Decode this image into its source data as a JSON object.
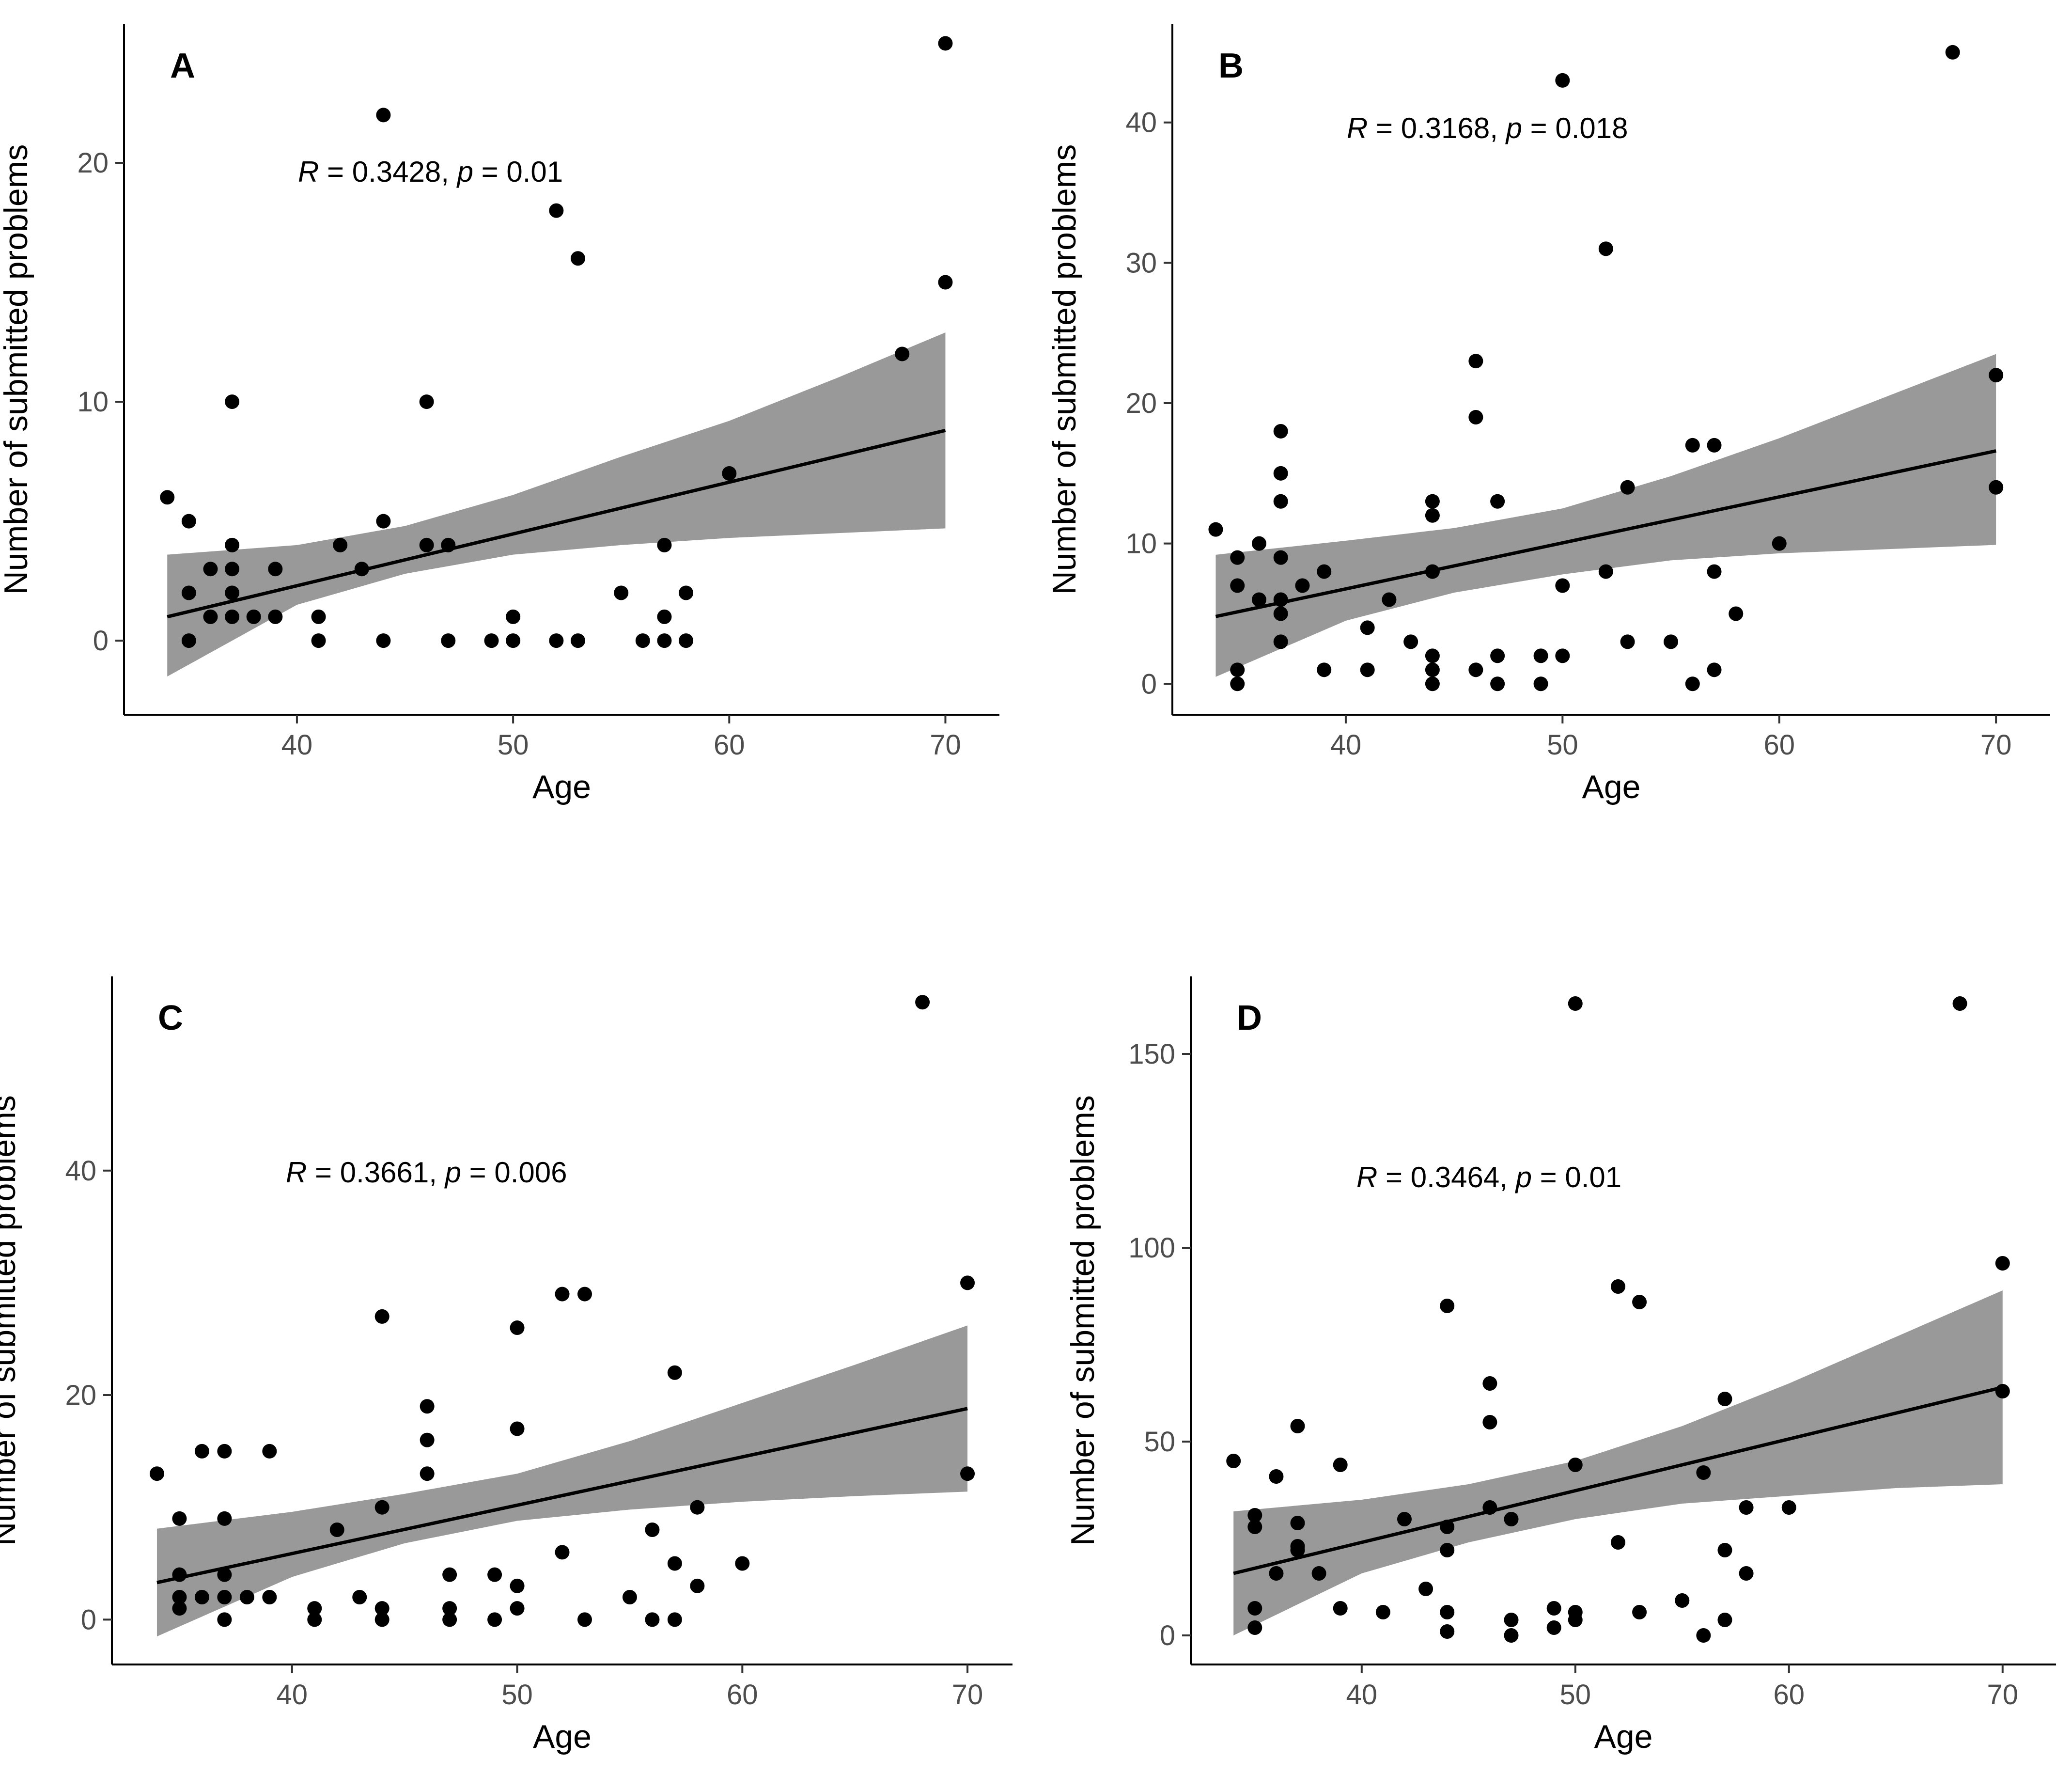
{
  "chart_data": [
    {
      "type": "scatter",
      "panel": "A",
      "xlabel": "Age",
      "ylabel": "Number of submitted problems",
      "annotation": {
        "r_label": "R",
        "r_value": "0.3428",
        "p_label": "p",
        "p_value": "0.01"
      },
      "xlim": [
        32.0,
        72.5
      ],
      "ylim": [
        -3.1,
        25.8
      ],
      "xticks": [
        40,
        50,
        60,
        70
      ],
      "yticks": [
        0,
        10,
        20
      ],
      "points": [
        [
          34,
          6
        ],
        [
          35,
          5
        ],
        [
          35,
          2
        ],
        [
          35,
          0
        ],
        [
          36,
          3
        ],
        [
          36,
          1
        ],
        [
          37,
          10
        ],
        [
          37,
          4
        ],
        [
          37,
          3
        ],
        [
          37,
          2
        ],
        [
          37,
          1
        ],
        [
          38,
          1
        ],
        [
          39,
          3
        ],
        [
          39,
          1
        ],
        [
          41,
          1
        ],
        [
          41,
          0
        ],
        [
          42,
          4
        ],
        [
          43,
          3
        ],
        [
          44,
          22
        ],
        [
          44,
          5
        ],
        [
          44,
          0
        ],
        [
          46,
          10
        ],
        [
          46,
          4
        ],
        [
          47,
          4
        ],
        [
          47,
          0
        ],
        [
          49,
          0
        ],
        [
          50,
          1
        ],
        [
          50,
          0
        ],
        [
          52,
          18
        ],
        [
          52,
          0
        ],
        [
          53,
          16
        ],
        [
          53,
          0
        ],
        [
          55,
          2
        ],
        [
          56,
          0
        ],
        [
          57,
          4
        ],
        [
          57,
          1
        ],
        [
          57,
          0
        ],
        [
          58,
          2
        ],
        [
          58,
          0
        ],
        [
          60,
          7
        ],
        [
          68,
          12
        ],
        [
          70,
          25
        ],
        [
          70,
          15
        ]
      ],
      "fit": {
        "x": [
          34,
          70
        ],
        "y": [
          1.0,
          8.8
        ]
      },
      "band": {
        "x": [
          34,
          40,
          45,
          50,
          55,
          60,
          65,
          70
        ],
        "lower": [
          -1.5,
          1.5,
          2.8,
          3.6,
          4.0,
          4.3,
          4.5,
          4.7
        ],
        "upper": [
          3.6,
          4.0,
          4.8,
          6.1,
          7.7,
          9.2,
          11.0,
          12.9
        ]
      }
    },
    {
      "type": "scatter",
      "panel": "B",
      "xlabel": "Age",
      "ylabel": "Number of submitted problems",
      "annotation": {
        "r_label": "R",
        "r_value": "0.3168",
        "p_label": "p",
        "p_value": "0.018"
      },
      "xlim": [
        32.0,
        72.5
      ],
      "ylim": [
        -2.2,
        47.0
      ],
      "xticks": [
        40,
        50,
        60,
        70
      ],
      "yticks": [
        0,
        10,
        20,
        30,
        40
      ],
      "points": [
        [
          34,
          11
        ],
        [
          35,
          9
        ],
        [
          35,
          7
        ],
        [
          35,
          1
        ],
        [
          35,
          0
        ],
        [
          36,
          10
        ],
        [
          36,
          6
        ],
        [
          37,
          18
        ],
        [
          37,
          15
        ],
        [
          37,
          13
        ],
        [
          37,
          9
        ],
        [
          37,
          6
        ],
        [
          37,
          5
        ],
        [
          37,
          3
        ],
        [
          38,
          7
        ],
        [
          39,
          8
        ],
        [
          39,
          1
        ],
        [
          41,
          4
        ],
        [
          41,
          1
        ],
        [
          42,
          6
        ],
        [
          43,
          3
        ],
        [
          44,
          13
        ],
        [
          44,
          12
        ],
        [
          44,
          8
        ],
        [
          44,
          2
        ],
        [
          44,
          1
        ],
        [
          44,
          0
        ],
        [
          46,
          23
        ],
        [
          46,
          19
        ],
        [
          46,
          1
        ],
        [
          47,
          13
        ],
        [
          47,
          2
        ],
        [
          47,
          0
        ],
        [
          49,
          2
        ],
        [
          49,
          0
        ],
        [
          50,
          43
        ],
        [
          50,
          7
        ],
        [
          50,
          2
        ],
        [
          52,
          31
        ],
        [
          52,
          8
        ],
        [
          53,
          14
        ],
        [
          53,
          3
        ],
        [
          55,
          3
        ],
        [
          56,
          17
        ],
        [
          56,
          0
        ],
        [
          57,
          17
        ],
        [
          57,
          8
        ],
        [
          57,
          1
        ],
        [
          58,
          5
        ],
        [
          60,
          10
        ],
        [
          68,
          45
        ],
        [
          70,
          22
        ],
        [
          70,
          14
        ]
      ],
      "fit": {
        "x": [
          34,
          70
        ],
        "y": [
          4.8,
          16.6
        ]
      },
      "band": {
        "x": [
          34,
          40,
          45,
          50,
          55,
          60,
          65,
          70
        ],
        "lower": [
          0.5,
          4.5,
          6.5,
          7.8,
          8.8,
          9.3,
          9.6,
          9.9
        ],
        "upper": [
          9.2,
          10.2,
          11.1,
          12.5,
          14.8,
          17.5,
          20.5,
          23.5
        ]
      }
    },
    {
      "type": "scatter",
      "panel": "C",
      "xlabel": "Age",
      "ylabel": "Number of submitted problems",
      "annotation": {
        "r_label": "R",
        "r_value": "0.3661",
        "p_label": "p",
        "p_value": "0.006"
      },
      "xlim": [
        32.0,
        72.0
      ],
      "ylim": [
        -4.0,
        57.3
      ],
      "xticks": [
        40,
        50,
        60,
        70
      ],
      "yticks": [
        0,
        20,
        40
      ],
      "points": [
        [
          34,
          13
        ],
        [
          35,
          9
        ],
        [
          35,
          4
        ],
        [
          35,
          2
        ],
        [
          35,
          1
        ],
        [
          36,
          15
        ],
        [
          36,
          2
        ],
        [
          37,
          15
        ],
        [
          37,
          9
        ],
        [
          37,
          4
        ],
        [
          37,
          2
        ],
        [
          37,
          0
        ],
        [
          38,
          2
        ],
        [
          39,
          15
        ],
        [
          39,
          2
        ],
        [
          41,
          1
        ],
        [
          41,
          0
        ],
        [
          42,
          8
        ],
        [
          43,
          2
        ],
        [
          44,
          27
        ],
        [
          44,
          10
        ],
        [
          44,
          1
        ],
        [
          44,
          0
        ],
        [
          46,
          19
        ],
        [
          46,
          16
        ],
        [
          46,
          13
        ],
        [
          47,
          4
        ],
        [
          47,
          1
        ],
        [
          47,
          0
        ],
        [
          49,
          4
        ],
        [
          49,
          0
        ],
        [
          50,
          26
        ],
        [
          50,
          17
        ],
        [
          50,
          3
        ],
        [
          50,
          1
        ],
        [
          52,
          29
        ],
        [
          52,
          6
        ],
        [
          53,
          29
        ],
        [
          53,
          0
        ],
        [
          55,
          2
        ],
        [
          56,
          8
        ],
        [
          56,
          0
        ],
        [
          57,
          22
        ],
        [
          57,
          5
        ],
        [
          57,
          0
        ],
        [
          58,
          10
        ],
        [
          58,
          3
        ],
        [
          60,
          5
        ],
        [
          68,
          55
        ],
        [
          70,
          30
        ],
        [
          70,
          13
        ]
      ],
      "fit": {
        "x": [
          34,
          70
        ],
        "y": [
          3.3,
          18.8
        ]
      },
      "band": {
        "x": [
          34,
          40,
          45,
          50,
          55,
          60,
          65,
          70
        ],
        "lower": [
          -1.5,
          3.8,
          6.8,
          8.8,
          9.8,
          10.5,
          11.0,
          11.4
        ],
        "upper": [
          8.1,
          9.6,
          11.2,
          13.0,
          15.9,
          19.3,
          22.7,
          26.2
        ]
      }
    },
    {
      "type": "scatter",
      "panel": "D",
      "xlabel": "Age",
      "ylabel": "Number of submitted problems",
      "annotation": {
        "r_label": "R",
        "r_value": "0.3464",
        "p_label": "p",
        "p_value": "0.01"
      },
      "xlim": [
        32.0,
        72.5
      ],
      "ylim": [
        -7.5,
        170.0
      ],
      "xticks": [
        40,
        50,
        60,
        70
      ],
      "yticks": [
        0,
        50,
        100,
        150
      ],
      "points": [
        [
          34,
          45
        ],
        [
          35,
          31
        ],
        [
          35,
          28
        ],
        [
          35,
          7
        ],
        [
          35,
          2
        ],
        [
          36,
          41
        ],
        [
          36,
          16
        ],
        [
          37,
          54
        ],
        [
          37,
          29
        ],
        [
          37,
          23
        ],
        [
          37,
          22
        ],
        [
          38,
          16
        ],
        [
          39,
          44
        ],
        [
          39,
          7
        ],
        [
          41,
          6
        ],
        [
          42,
          30
        ],
        [
          43,
          12
        ],
        [
          44,
          85
        ],
        [
          44,
          28
        ],
        [
          44,
          22
        ],
        [
          44,
          6
        ],
        [
          44,
          1
        ],
        [
          46,
          65
        ],
        [
          46,
          55
        ],
        [
          46,
          33
        ],
        [
          47,
          30
        ],
        [
          47,
          4
        ],
        [
          47,
          0
        ],
        [
          49,
          7
        ],
        [
          49,
          2
        ],
        [
          50,
          163
        ],
        [
          50,
          44
        ],
        [
          50,
          6
        ],
        [
          50,
          4
        ],
        [
          52,
          90
        ],
        [
          52,
          24
        ],
        [
          53,
          86
        ],
        [
          53,
          6
        ],
        [
          55,
          9
        ],
        [
          56,
          42
        ],
        [
          56,
          0
        ],
        [
          57,
          61
        ],
        [
          57,
          22
        ],
        [
          57,
          4
        ],
        [
          58,
          33
        ],
        [
          58,
          16
        ],
        [
          60,
          33
        ],
        [
          68,
          163
        ],
        [
          70,
          96
        ],
        [
          70,
          63
        ]
      ],
      "fit": {
        "x": [
          34,
          70
        ],
        "y": [
          16,
          64
        ]
      },
      "band": {
        "x": [
          34,
          40,
          45,
          50,
          55,
          60,
          65,
          70
        ],
        "lower": [
          0,
          16,
          24,
          30,
          34,
          36,
          38,
          39
        ],
        "upper": [
          32,
          35,
          39,
          45,
          54,
          65,
          77,
          89
        ]
      }
    }
  ]
}
